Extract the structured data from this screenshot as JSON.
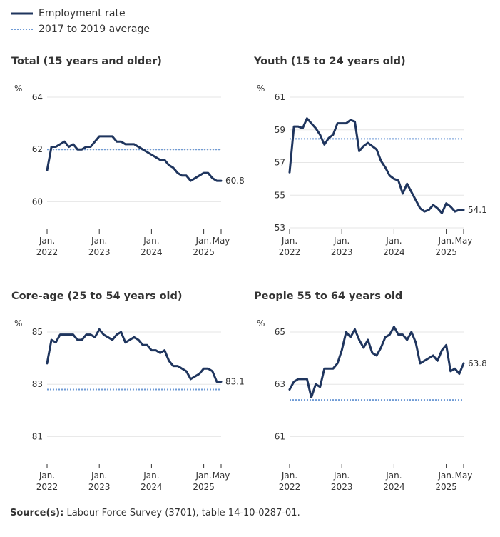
{
  "legend": {
    "employment_label": "Employment rate",
    "average_label": "2017 to 2019 average"
  },
  "colors": {
    "series": "#1f355e",
    "average": "#6f9bd6",
    "grid": "#e6e6e6",
    "axis": "#333333"
  },
  "source": {
    "label": "Source(s):",
    "text": "Labour Force Survey (3701), table 14-10-0287-01."
  },
  "unit_label": "%",
  "chart_data": [
    {
      "type": "line",
      "title": "Total (15 years and older)",
      "ylabel": "%",
      "ylim": [
        59,
        64
      ],
      "yticks": [
        60,
        62,
        64
      ],
      "xticks": [
        {
          "month": 0,
          "line1": "Jan.",
          "line2": "2022"
        },
        {
          "month": 12,
          "line1": "Jan.",
          "line2": "2023"
        },
        {
          "month": 24,
          "line1": "Jan.",
          "line2": "2024"
        },
        {
          "month": 36,
          "line1": "Jan.",
          "line2": "2025"
        },
        {
          "month": 40,
          "line1": "May",
          "line2": ""
        }
      ],
      "series": [
        {
          "name": "Employment rate",
          "x_start": "2022-01",
          "values": [
            61.2,
            62.1,
            62.1,
            62.2,
            62.3,
            62.1,
            62.2,
            62.0,
            62.0,
            62.1,
            62.1,
            62.3,
            62.5,
            62.5,
            62.5,
            62.5,
            62.3,
            62.3,
            62.2,
            62.2,
            62.2,
            62.1,
            62.0,
            61.9,
            61.8,
            61.7,
            61.6,
            61.6,
            61.4,
            61.3,
            61.1,
            61.0,
            61.0,
            60.8,
            60.9,
            61.0,
            61.1,
            61.1,
            60.9,
            60.8,
            60.8
          ]
        },
        {
          "name": "2017 to 2019 average",
          "value": 62.0
        }
      ],
      "end_label": "60.8"
    },
    {
      "type": "line",
      "title": "Youth (15 to 24 years old)",
      "ylabel": "%",
      "ylim": [
        53,
        61
      ],
      "yticks": [
        53,
        55,
        57,
        59,
        61
      ],
      "xticks": [
        {
          "month": 0,
          "line1": "Jan.",
          "line2": "2022"
        },
        {
          "month": 12,
          "line1": "Jan.",
          "line2": "2023"
        },
        {
          "month": 24,
          "line1": "Jan.",
          "line2": "2024"
        },
        {
          "month": 36,
          "line1": "Jan.",
          "line2": "2025"
        },
        {
          "month": 40,
          "line1": "May",
          "line2": ""
        }
      ],
      "series": [
        {
          "name": "Employment rate",
          "x_start": "2022-01",
          "values": [
            56.4,
            59.2,
            59.2,
            59.1,
            59.7,
            59.4,
            59.1,
            58.7,
            58.1,
            58.5,
            58.7,
            59.4,
            59.4,
            59.4,
            59.6,
            59.5,
            57.7,
            58.0,
            58.2,
            58.0,
            57.8,
            57.1,
            56.7,
            56.2,
            56.0,
            55.9,
            55.1,
            55.7,
            55.2,
            54.7,
            54.2,
            54.0,
            54.1,
            54.4,
            54.2,
            53.9,
            54.5,
            54.3,
            54.0,
            54.1,
            54.1
          ]
        },
        {
          "name": "2017 to 2019 average",
          "value": 58.45
        }
      ],
      "end_label": "54.1"
    },
    {
      "type": "line",
      "title": "Core-age (25 to 54 years old)",
      "ylabel": "%",
      "ylim": [
        80,
        85
      ],
      "yticks": [
        81,
        83,
        85
      ],
      "xticks": [
        {
          "month": 0,
          "line1": "Jan.",
          "line2": "2022"
        },
        {
          "month": 12,
          "line1": "Jan.",
          "line2": "2023"
        },
        {
          "month": 24,
          "line1": "Jan.",
          "line2": "2024"
        },
        {
          "month": 36,
          "line1": "Jan.",
          "line2": "2025"
        },
        {
          "month": 40,
          "line1": "May",
          "line2": ""
        }
      ],
      "series": [
        {
          "name": "Employment rate",
          "x_start": "2022-01",
          "values": [
            83.8,
            84.7,
            84.6,
            84.9,
            84.9,
            84.9,
            84.9,
            84.7,
            84.7,
            84.9,
            84.9,
            84.8,
            85.1,
            84.9,
            84.8,
            84.7,
            84.9,
            85.0,
            84.6,
            84.7,
            84.8,
            84.7,
            84.5,
            84.5,
            84.3,
            84.3,
            84.2,
            84.3,
            83.9,
            83.7,
            83.7,
            83.6,
            83.5,
            83.2,
            83.3,
            83.4,
            83.6,
            83.6,
            83.5,
            83.1,
            83.1
          ]
        },
        {
          "name": "2017 to 2019 average",
          "value": 82.8
        }
      ],
      "end_label": "83.1"
    },
    {
      "type": "line",
      "title": "People 55 to 64 years old",
      "ylabel": "%",
      "ylim": [
        60,
        65
      ],
      "yticks": [
        61,
        63,
        65
      ],
      "xticks": [
        {
          "month": 0,
          "line1": "Jan.",
          "line2": "2022"
        },
        {
          "month": 12,
          "line1": "Jan.",
          "line2": "2023"
        },
        {
          "month": 24,
          "line1": "Jan.",
          "line2": "2024"
        },
        {
          "month": 36,
          "line1": "Jan.",
          "line2": "2025"
        },
        {
          "month": 40,
          "line1": "May",
          "line2": ""
        }
      ],
      "series": [
        {
          "name": "Employment rate",
          "x_start": "2022-01",
          "values": [
            62.8,
            63.1,
            63.2,
            63.2,
            63.2,
            62.5,
            63.0,
            62.9,
            63.6,
            63.6,
            63.6,
            63.8,
            64.3,
            65.0,
            64.8,
            65.1,
            64.7,
            64.4,
            64.7,
            64.2,
            64.1,
            64.4,
            64.8,
            64.9,
            65.2,
            64.9,
            64.9,
            64.7,
            65.0,
            64.6,
            63.8,
            63.9,
            64.0,
            64.1,
            63.9,
            64.3,
            64.5,
            63.5,
            63.6,
            63.4,
            63.8
          ]
        },
        {
          "name": "2017 to 2019 average",
          "value": 62.4
        }
      ],
      "end_label": "63.8"
    }
  ]
}
